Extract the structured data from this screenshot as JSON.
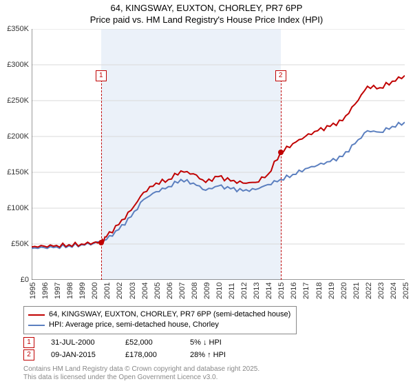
{
  "title_line1": "64, KINGSWAY, EUXTON, CHORLEY, PR7 6PP",
  "title_line2": "Price paid vs. HM Land Registry's House Price Index (HPI)",
  "chart": {
    "type": "line",
    "background_color": "#ffffff",
    "shade_color": "#dde7f5",
    "axis_color": "#333333",
    "grid_color": "#d9d9d9",
    "series_a": {
      "label": "64, KINGSWAY, EUXTON, CHORLEY, PR7 6PP (semi-detached house)",
      "color": "#c00000",
      "width": 2
    },
    "series_b": {
      "label": "HPI: Average price, semi-detached house, Chorley",
      "color": "#5b7fbf",
      "width": 2
    },
    "ylim": [
      0,
      350000
    ],
    "ytick_step": 50000,
    "yticks": [
      "£0",
      "£50K",
      "£100K",
      "£150K",
      "£200K",
      "£250K",
      "£300K",
      "£350K"
    ],
    "xlim": [
      1995,
      2025
    ],
    "xticks": [
      1995,
      1996,
      1997,
      1998,
      1999,
      2000,
      2001,
      2002,
      2003,
      2004,
      2005,
      2006,
      2007,
      2008,
      2009,
      2010,
      2011,
      2012,
      2013,
      2014,
      2015,
      2016,
      2017,
      2018,
      2019,
      2020,
      2021,
      2022,
      2023,
      2024,
      2025
    ],
    "shade_start": 2000.58,
    "shade_end": 2015.02,
    "series_a_data": [
      [
        1995,
        46000
      ],
      [
        1996,
        47000
      ],
      [
        1997,
        48000
      ],
      [
        1998,
        49000
      ],
      [
        1999,
        50000
      ],
      [
        2000,
        52000
      ],
      [
        2000.58,
        52000
      ],
      [
        2001,
        60000
      ],
      [
        2002,
        77000
      ],
      [
        2003,
        97000
      ],
      [
        2004,
        122000
      ],
      [
        2005,
        135000
      ],
      [
        2006,
        140000
      ],
      [
        2007,
        152000
      ],
      [
        2008,
        148000
      ],
      [
        2009,
        136000
      ],
      [
        2010,
        144000
      ],
      [
        2011,
        138000
      ],
      [
        2012,
        135000
      ],
      [
        2013,
        136000
      ],
      [
        2014,
        147000
      ],
      [
        2015.02,
        178000
      ],
      [
        2016,
        190000
      ],
      [
        2017,
        200000
      ],
      [
        2018,
        208000
      ],
      [
        2019,
        214000
      ],
      [
        2020,
        222000
      ],
      [
        2021,
        245000
      ],
      [
        2022,
        270000
      ],
      [
        2023,
        268000
      ],
      [
        2024,
        277000
      ],
      [
        2025,
        285000
      ]
    ],
    "series_b_data": [
      [
        1995,
        44000
      ],
      [
        1996,
        45000
      ],
      [
        1997,
        46000
      ],
      [
        1998,
        47500
      ],
      [
        1999,
        49000
      ],
      [
        2000,
        51000
      ],
      [
        2001,
        56000
      ],
      [
        2002,
        70000
      ],
      [
        2003,
        88000
      ],
      [
        2004,
        112000
      ],
      [
        2005,
        123000
      ],
      [
        2006,
        130000
      ],
      [
        2007,
        140000
      ],
      [
        2008,
        135000
      ],
      [
        2009,
        125000
      ],
      [
        2010,
        131000
      ],
      [
        2011,
        127000
      ],
      [
        2012,
        124000
      ],
      [
        2013,
        126000
      ],
      [
        2014,
        133000
      ],
      [
        2015,
        140000
      ],
      [
        2016,
        147000
      ],
      [
        2017,
        155000
      ],
      [
        2018,
        160000
      ],
      [
        2019,
        165000
      ],
      [
        2020,
        172000
      ],
      [
        2021,
        190000
      ],
      [
        2022,
        208000
      ],
      [
        2023,
        206000
      ],
      [
        2024,
        214000
      ],
      [
        2025,
        220000
      ]
    ],
    "markers": [
      {
        "n": "1",
        "year": 2000.58,
        "price": 52000,
        "box_top": 60
      },
      {
        "n": "2",
        "year": 2015.02,
        "price": 178000,
        "box_top": 60
      }
    ]
  },
  "events": [
    {
      "n": "1",
      "date": "31-JUL-2000",
      "price": "£52,000",
      "pct": "5%",
      "dir": "↓",
      "suffix": "HPI"
    },
    {
      "n": "2",
      "date": "09-JAN-2015",
      "price": "£178,000",
      "pct": "28%",
      "dir": "↑",
      "suffix": "HPI"
    }
  ],
  "footer_line1": "Contains HM Land Registry data © Crown copyright and database right 2025.",
  "footer_line2": "This data is licensed under the Open Government Licence v3.0."
}
